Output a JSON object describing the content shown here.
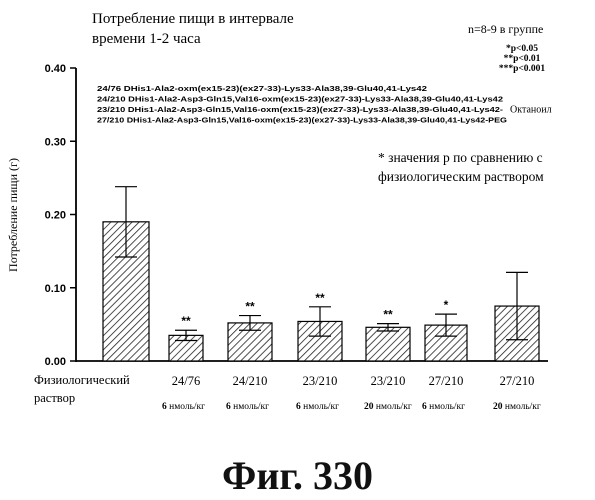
{
  "chart_data": {
    "type": "bar",
    "title_lines": [
      "Потребление пищи в интервале",
      "времени 1-2 часа"
    ],
    "ylabel": "Потребление пищи (г)",
    "ylim": [
      0,
      0.4
    ],
    "yticks": [
      "0.00",
      "0.10",
      "0.20",
      "0.30",
      "0.40"
    ],
    "n_note": "n=8-9 в группе",
    "significance_legend": [
      "*p<0.05",
      "**p<0.01",
      "***p<0.001"
    ],
    "compound_legend": [
      "24/76 DHis1-Ala2-oxm(ex15-23)(ex27-33)-Lys33-Ala38,39-Glu40,41-Lys42",
      "24/210 DHis1-Ala2-Asp3-Gln15,Val16-oxm(ex15-23)(ex27-33)-Lys33-Ala38,39-Glu40,41-Lys42",
      "23/210 DHis1-Ala2-Asp3-Gln15,Val16-oxm(ex15-23)(ex27-33)-Lys33-Ala38,39-Glu40,41-Lys42-",
      "27/210 DHis1-Ala2-Asp3-Gln15,Val16-oxm(ex15-23)(ex27-33)-Lys33-Ala38,39-Glu40,41-Lys42-PEG"
    ],
    "compound_suffix": "Октаноил",
    "annotation_lines": [
      "* значения p по сравнению с",
      "физиологическим раствором"
    ],
    "categories": [
      "Физиологический раствор",
      "24/76",
      "24/210",
      "23/210",
      "23/210",
      "27/210",
      "27/210"
    ],
    "category_lines": [
      [
        "Физиологический",
        "раствор"
      ],
      [
        "24/76"
      ],
      [
        "24/210"
      ],
      [
        "23/210"
      ],
      [
        "23/210"
      ],
      [
        "27/210"
      ],
      [
        "27/210"
      ]
    ],
    "dose_labels": [
      [
        "",
        ""
      ],
      [
        "6",
        "нмоль/кг"
      ],
      [
        "6",
        "нмоль/кг"
      ],
      [
        "6",
        "нмоль/кг"
      ],
      [
        "20",
        "нмоль/кг"
      ],
      [
        "6",
        "нмоль/кг"
      ],
      [
        "20",
        "нмоль/кг"
      ]
    ],
    "values": [
      0.19,
      0.035,
      0.052,
      0.054,
      0.046,
      0.049,
      0.075
    ],
    "errors": [
      0.048,
      0.007,
      0.01,
      0.02,
      0.005,
      0.015,
      0.046
    ],
    "significance": [
      "",
      "**",
      "**",
      "**",
      "**",
      "*",
      ""
    ],
    "bar_fill": "hatched",
    "grid": false
  },
  "figure_caption": "Фиг.  330"
}
